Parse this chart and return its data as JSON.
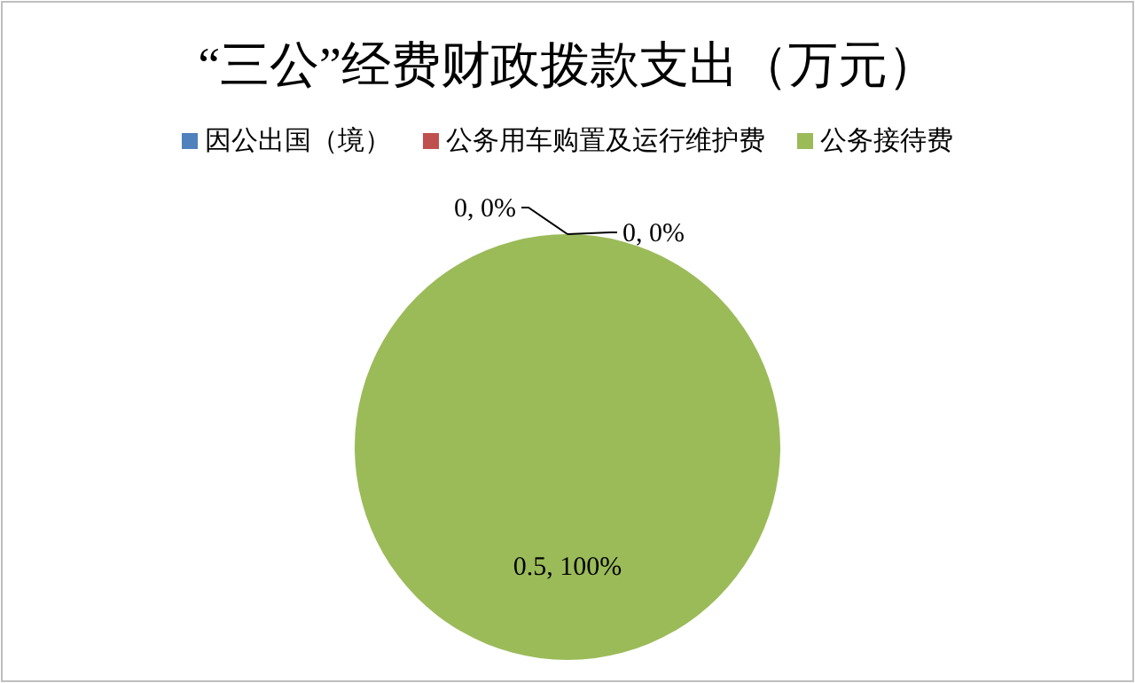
{
  "chart_data": {
    "type": "pie",
    "title": "“三公”经费财政拨款支出（万元）",
    "categories": [
      "因公出国（境）",
      "公务用车购置及运行维护费",
      "公务接待费"
    ],
    "values": [
      0,
      0,
      0.5
    ],
    "colors": [
      "#4f81bd",
      "#c0504d",
      "#9bbb59"
    ],
    "value_labels": [
      "0, 0%",
      "0, 0%",
      "0.5, 100%"
    ],
    "legend": "top"
  }
}
